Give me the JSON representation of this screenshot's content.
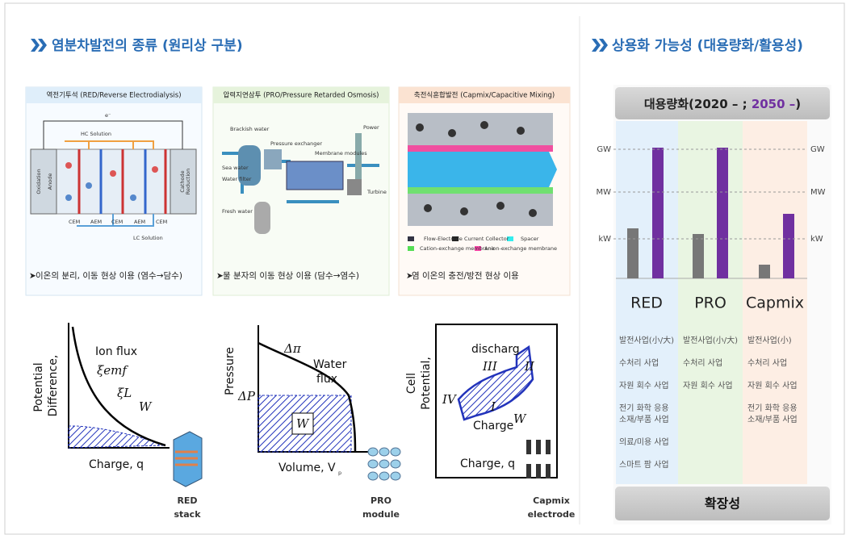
{
  "left_title": "염분차발전의 종류 (원리상 구분)",
  "panels": [
    {
      "header": "역전기투석 (RED/Reverse Electrodialysis)",
      "caption": "이온의 분리, 이동 현상 이용 (염수→담수)",
      "labels": [
        "e⁻",
        "HC Solution",
        "Oxidation",
        "Anode",
        "Cathode",
        "Reduction",
        "CEM",
        "AEM",
        "CEM",
        "AEM",
        "CEM",
        "LC Solution"
      ]
    },
    {
      "header": "압력지연삼투 (PRO/Pressure Retarded Osmosis)",
      "caption": "물 분자의 이동 현상 이용 (담수→염수)",
      "labels": [
        "Brackish water",
        "Pressure exchanger",
        "Membrane modules",
        "Power",
        "Sea water",
        "Water filter",
        "Fresh water",
        "Turbine"
      ]
    },
    {
      "header": "축전식혼합발전 (Capmix/Capacitive Mixing)",
      "caption": "염 이온의 충전/방전 현상 이용",
      "labels": [
        "Flow-Electrode",
        "Current Collector",
        "Spacer",
        "Cation-exchange membrane",
        "Anion-exchange membrane"
      ]
    }
  ],
  "graphs": [
    {
      "labels": [
        "Potential",
        "Difference,",
        "Ion flux",
        "ξemf",
        "ξL",
        "W",
        "Charge, q"
      ],
      "device": [
        "RED",
        "stack"
      ]
    },
    {
      "labels": [
        "Pressure",
        "Δπ",
        "Water",
        "flux",
        "ΔP",
        "W",
        "Volume, V",
        "p"
      ],
      "device": [
        "PRO",
        "module"
      ]
    },
    {
      "labels": [
        "Cell",
        "Potential,",
        "discharg",
        "III",
        "II",
        "IV",
        "I",
        "W",
        "Charge",
        "Charge, q"
      ],
      "device": [
        "Capmix",
        "electrode"
      ]
    }
  ],
  "right_title": "상용화 가능성 (대용량화/활용성)",
  "chart": {
    "header": [
      "대용량화(2020 – ; ",
      "2050 –",
      ")"
    ],
    "levels": [
      "GW",
      "MW",
      "kW"
    ],
    "columns": [
      {
        "name": "RED",
        "uses": [
          "발전사업(小/大)",
          "수처리 사업",
          "자원 회수 사업",
          "전기 화학 응용",
          "소재/부품 사업",
          "의료/미용 사업",
          "스마트 팜 사업"
        ]
      },
      {
        "name": "PRO",
        "uses": [
          "발전사업(小/大)",
          "수처리 사업",
          "자원 회수 사업"
        ]
      },
      {
        "name": "Capmix",
        "uses": [
          "발전사업(小)",
          "수처리 사업",
          "자원 회수 사업",
          "전기 화학 응용",
          "소재/부품 사업"
        ]
      }
    ]
  },
  "footer": "확장성"
}
